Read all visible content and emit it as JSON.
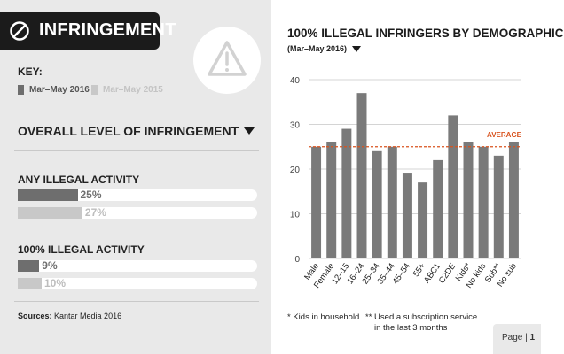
{
  "header": {
    "title": "INFRINGEMENT",
    "icon": "prohibited-icon"
  },
  "key": {
    "label": "KEY:",
    "current": {
      "label": "Mar–May 2016",
      "color": "#6e6e6e"
    },
    "previous": {
      "label": "Mar–May 2015",
      "color": "#c8c8c8"
    }
  },
  "overall": {
    "heading": "OVERALL LEVEL OF INFRINGEMENT",
    "groups": [
      {
        "label": "ANY ILLEGAL ACTIVITY",
        "current_pct": 25,
        "current_text": "25%",
        "previous_pct": 27,
        "previous_text": "27%"
      },
      {
        "label": "100% ILLEGAL ACTIVITY",
        "current_pct": 9,
        "current_text": "9%",
        "previous_pct": 10,
        "previous_text": "10%"
      }
    ]
  },
  "sources": {
    "label": "Sources:",
    "text": "Kantar Media 2016"
  },
  "chart_data": {
    "type": "bar",
    "title": "100% ILLEGAL INFRINGERS BY DEMOGRAPHIC",
    "subtitle": "(Mar–May 2016)",
    "categories": [
      "Male",
      "Female",
      "12–15",
      "16–24",
      "25–34",
      "35–44",
      "45–54",
      "55+",
      "ABC1",
      "C2DE",
      "Kids*",
      "No kids",
      "Sub**",
      "No sub"
    ],
    "values": [
      25,
      26,
      29,
      37,
      24,
      25,
      19,
      17,
      22,
      32,
      26,
      25,
      23,
      26
    ],
    "ylim": [
      0,
      40
    ],
    "yticks": [
      "0",
      "10",
      "20",
      "30",
      "40"
    ],
    "average": {
      "value": 25,
      "label": "AVERAGE",
      "color": "#d9531e"
    },
    "bar_color": "#7a7a7a",
    "grid": true
  },
  "footnotes": [
    {
      "mark": "*",
      "lines": [
        "Kids in household"
      ]
    },
    {
      "mark": "**",
      "lines": [
        "Used a subscription service",
        "in the last 3 months"
      ]
    }
  ],
  "page": {
    "label": "Page |",
    "number": "1"
  }
}
